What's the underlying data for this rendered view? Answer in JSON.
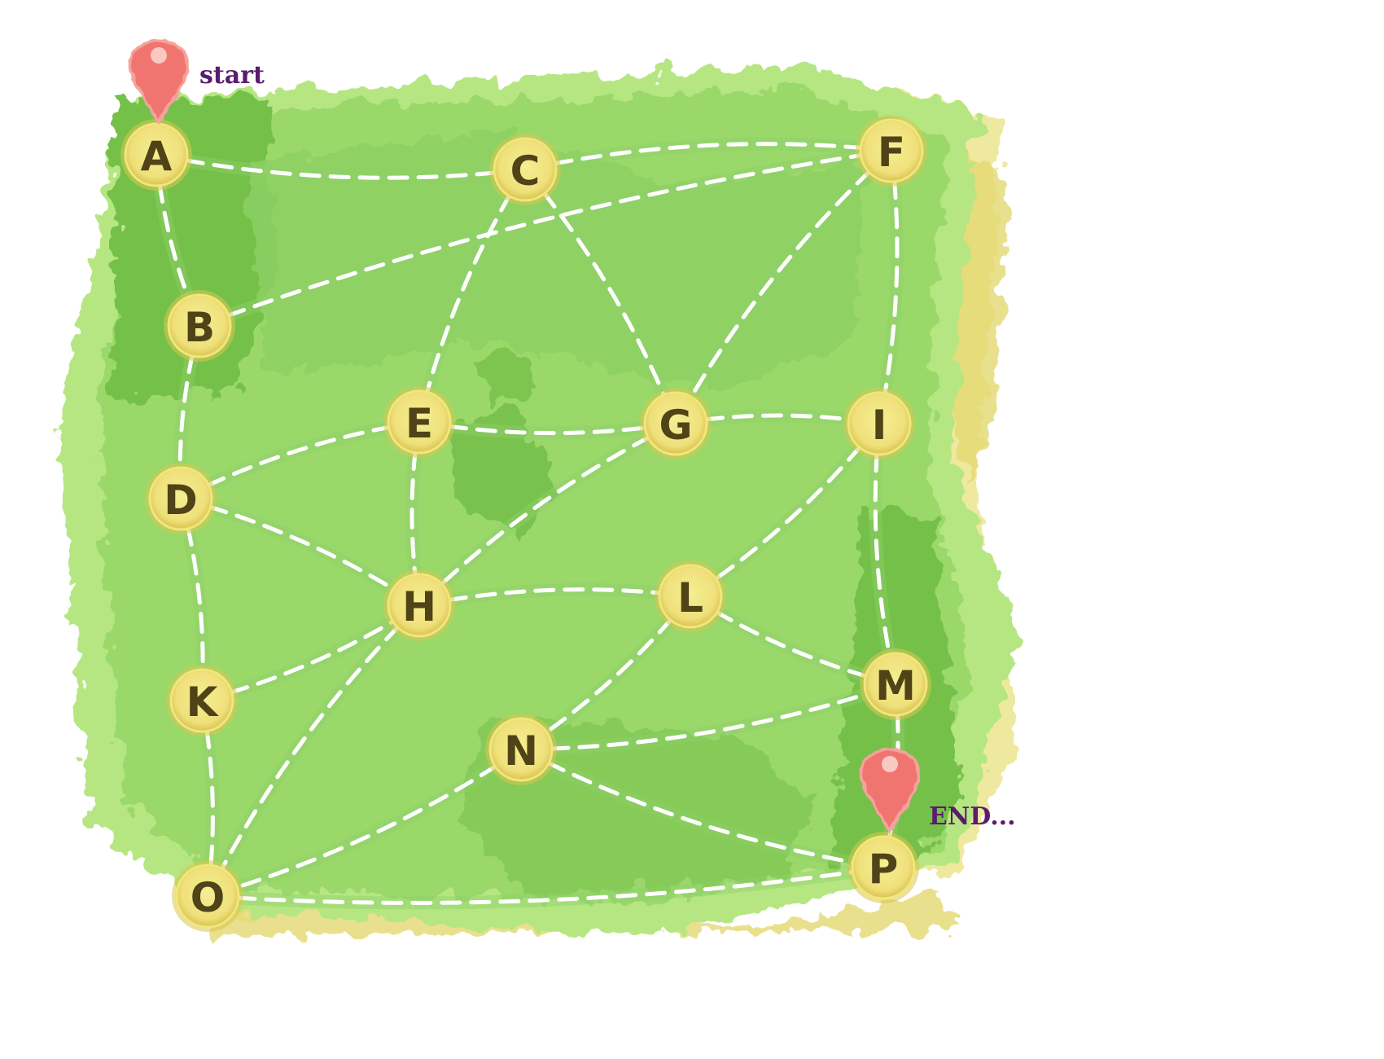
{
  "map": {
    "nodes": [
      {
        "id": "A",
        "label": "A"
      },
      {
        "id": "B",
        "label": "B"
      },
      {
        "id": "C",
        "label": "C"
      },
      {
        "id": "D",
        "label": "D"
      },
      {
        "id": "E",
        "label": "E"
      },
      {
        "id": "F",
        "label": "F"
      },
      {
        "id": "G",
        "label": "G"
      },
      {
        "id": "H",
        "label": "H"
      },
      {
        "id": "I",
        "label": "I"
      },
      {
        "id": "K",
        "label": "K"
      },
      {
        "id": "L",
        "label": "L"
      },
      {
        "id": "M",
        "label": "M"
      },
      {
        "id": "N",
        "label": "N"
      },
      {
        "id": "O",
        "label": "O"
      },
      {
        "id": "P",
        "label": "P"
      }
    ],
    "edges": [
      [
        "A",
        "C"
      ],
      [
        "C",
        "F"
      ],
      [
        "A",
        "B"
      ],
      [
        "B",
        "F"
      ],
      [
        "C",
        "E"
      ],
      [
        "C",
        "G"
      ],
      [
        "F",
        "G"
      ],
      [
        "F",
        "I"
      ],
      [
        "B",
        "D"
      ],
      [
        "D",
        "E"
      ],
      [
        "E",
        "G"
      ],
      [
        "G",
        "I"
      ],
      [
        "E",
        "H"
      ],
      [
        "D",
        "H"
      ],
      [
        "G",
        "H"
      ],
      [
        "I",
        "L"
      ],
      [
        "I",
        "M"
      ],
      [
        "D",
        "K"
      ],
      [
        "K",
        "H"
      ],
      [
        "H",
        "L"
      ],
      [
        "L",
        "M"
      ],
      [
        "L",
        "N"
      ],
      [
        "H",
        "O"
      ],
      [
        "K",
        "O"
      ],
      [
        "N",
        "M"
      ],
      [
        "N",
        "O"
      ],
      [
        "N",
        "P"
      ],
      [
        "M",
        "P"
      ],
      [
        "O",
        "P"
      ]
    ],
    "start_marker": {
      "node": "A",
      "label": "start"
    },
    "end_marker": {
      "node": "P",
      "label": "END..."
    },
    "colors": {
      "marker": "#f07570",
      "node_fill": "#f1e67e",
      "node_text": "#4f4317",
      "land": "#86cc5a",
      "sand": "#efe9a0",
      "marker_text": "#5a1d6c"
    }
  }
}
